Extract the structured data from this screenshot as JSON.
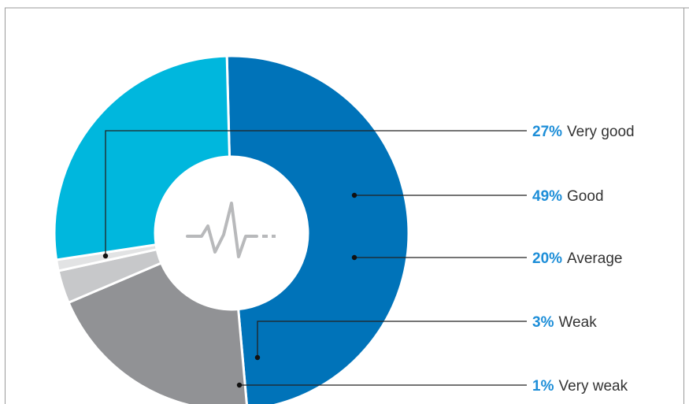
{
  "chart_data": {
    "type": "pie",
    "style": "donut",
    "slices": [
      {
        "label": "Very good",
        "value": 27,
        "pct_text": "27%",
        "color": "#00b7dd"
      },
      {
        "label": "Good",
        "value": 49,
        "pct_text": "49%",
        "color": "#0073b9"
      },
      {
        "label": "Average",
        "value": 20,
        "pct_text": "20%",
        "color": "#919295"
      },
      {
        "label": "Weak",
        "value": 3,
        "pct_text": "3%",
        "color": "#c7c8ca"
      },
      {
        "label": "Very weak",
        "value": 1,
        "pct_text": "1%",
        "color": "#e2e3e4"
      }
    ],
    "accent_color": "#1d8ed8",
    "label_color": "#333333",
    "center_icon": "heartbeat-icon",
    "grid": false
  }
}
